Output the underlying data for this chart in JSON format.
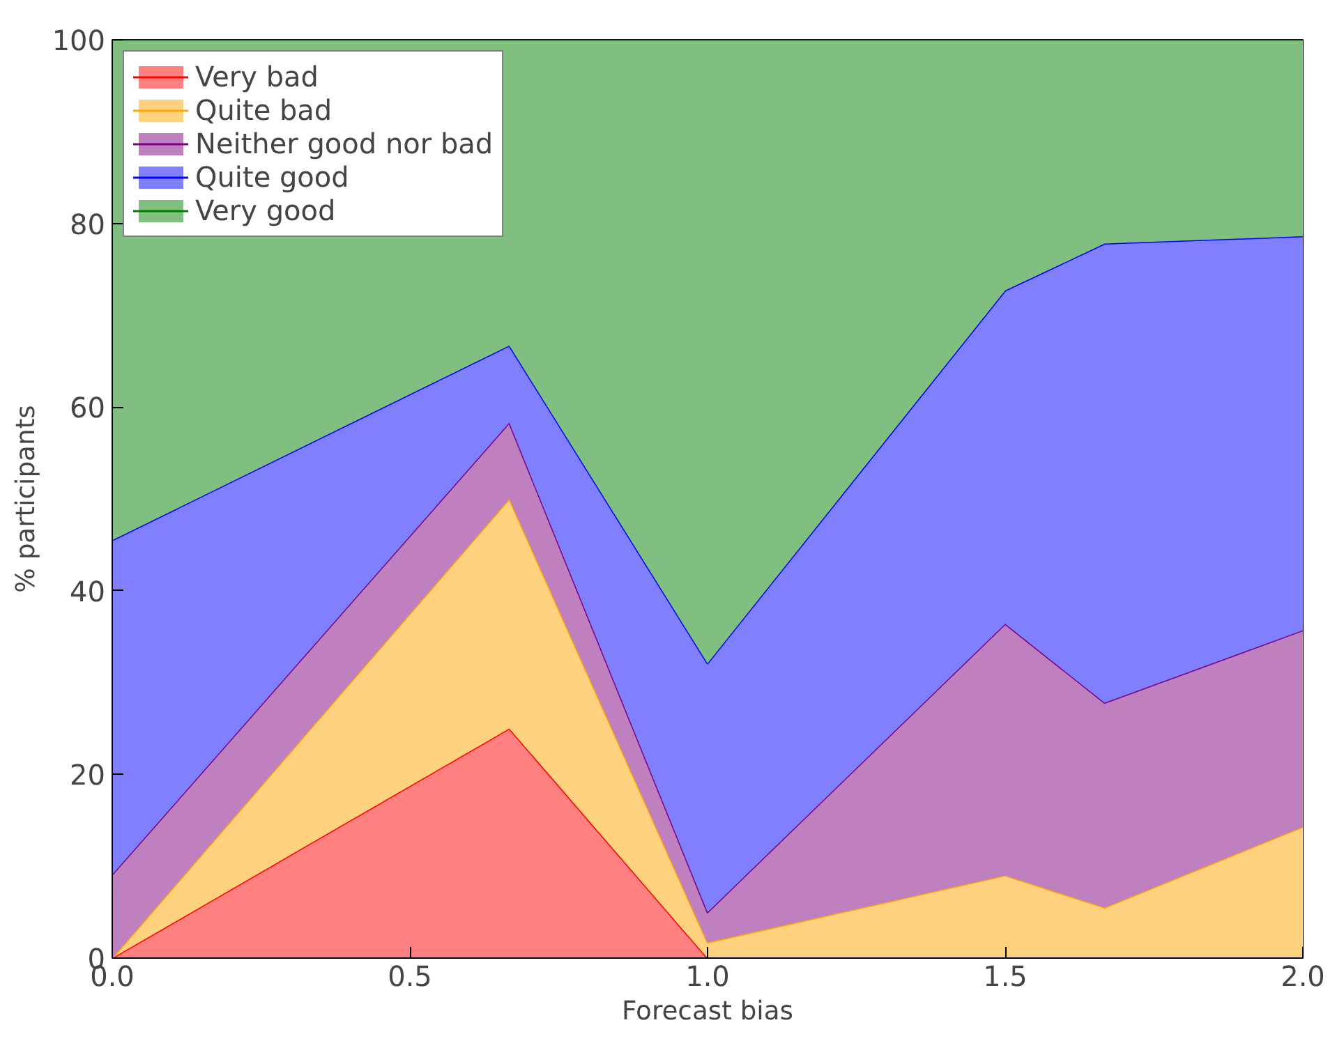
{
  "chart_data": {
    "type": "area",
    "stacked": true,
    "xlabel": "Forecast bias",
    "ylabel": "% participants",
    "x": [
      0,
      0.667,
      1.0,
      1.5,
      1.667,
      2.0
    ],
    "series": [
      {
        "name": "Very bad",
        "color": "#ff8080",
        "values": [
          0,
          25,
          0,
          0,
          0,
          0
        ]
      },
      {
        "name": "Quite bad",
        "color": "#ffd280",
        "values": [
          0,
          25,
          1.7,
          9.0,
          5.5,
          14.3
        ]
      },
      {
        "name": "Neither good nor bad",
        "color": "#bf80bf",
        "values": [
          9.1,
          8.3,
          3.3,
          27.4,
          22.3,
          21.4
        ]
      },
      {
        "name": "Quite good",
        "color": "#8080ff",
        "values": [
          36.4,
          8.4,
          27.1,
          36.3,
          50.0,
          42.9
        ]
      },
      {
        "name": "Very good",
        "color": "#80bf80",
        "values": [
          54.5,
          33.3,
          67.9,
          27.3,
          22.2,
          21.4
        ]
      }
    ],
    "xlim": [
      0,
      2.0
    ],
    "ylim": [
      0,
      100
    ],
    "xticks": [
      {
        "value": 0,
        "label": "0.0"
      },
      {
        "value": 0.5,
        "label": "0.5"
      },
      {
        "value": 1.0,
        "label": "1.0"
      },
      {
        "value": 1.5,
        "label": "1.5"
      },
      {
        "value": 2.0,
        "label": "2.0"
      }
    ],
    "yticks": [
      0,
      20,
      40,
      60,
      80,
      100
    ],
    "legend": "top left"
  }
}
